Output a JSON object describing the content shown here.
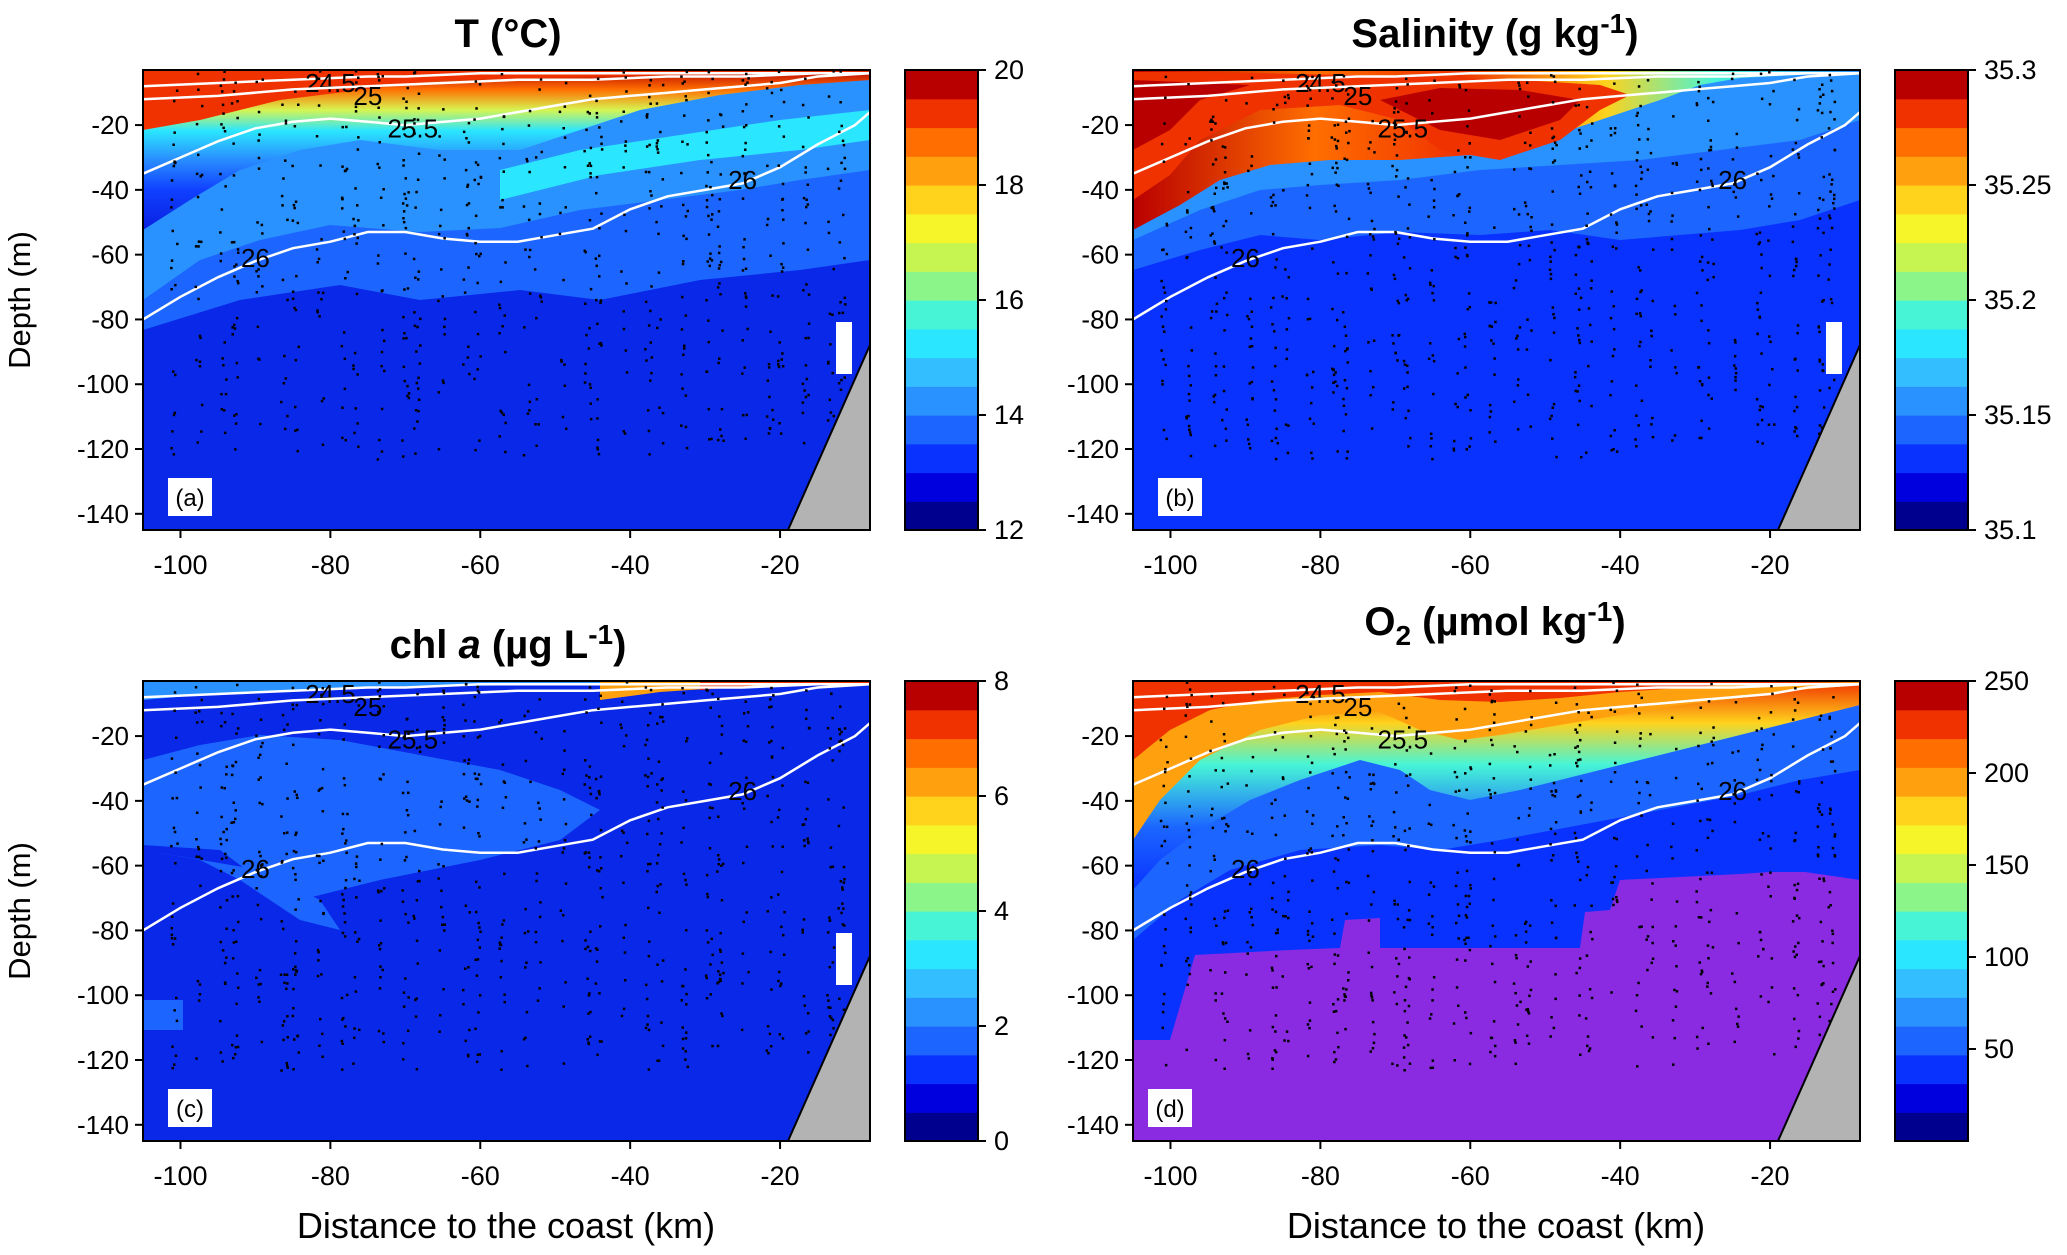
{
  "figure": {
    "ylabel": "Depth (m)",
    "xlabel": "Distance to the coast (km)"
  },
  "chart_data": [
    {
      "type": "heatmap",
      "panel": "(a)",
      "title": "T (°C)",
      "ylabel": "Depth (m)",
      "xlabel": "",
      "xlim": [
        -105,
        -8
      ],
      "ylim": [
        -145,
        -3
      ],
      "xticks": [
        "-100",
        "-80",
        "-60",
        "-40",
        "-20"
      ],
      "yticks": [
        "-20",
        "-40",
        "-60",
        "-80",
        "-100",
        "-120",
        "-140"
      ],
      "colorbar": {
        "min": 12,
        "max": 20,
        "levels": 16,
        "ticks": [
          "20",
          "18",
          "16",
          "14",
          "12"
        ]
      },
      "isopycnals": [
        {
          "label": "24.5",
          "x": [
            -105,
            -95,
            -85,
            -75,
            -70,
            -60,
            -50,
            -40,
            -30,
            -20,
            -10,
            -8
          ],
          "y": [
            -8,
            -7,
            -6,
            -5,
            -5,
            -4,
            -4,
            -4,
            -4,
            -4,
            -4,
            -4
          ]
        },
        {
          "label": "25",
          "x": [
            -105,
            -95,
            -85,
            -75,
            -65,
            -55,
            -45,
            -35,
            -25,
            -15,
            -8
          ],
          "y": [
            -12,
            -11,
            -9,
            -8,
            -7,
            -6,
            -6,
            -5,
            -5,
            -4,
            -4
          ]
        },
        {
          "label": "25.5",
          "x": [
            -105,
            -100,
            -95,
            -90,
            -85,
            -80,
            -75,
            -70,
            -60,
            -55,
            -50,
            -45,
            -40,
            -35,
            -30,
            -25,
            -20,
            -15,
            -8
          ],
          "y": [
            -35,
            -30,
            -25,
            -21,
            -19,
            -18,
            -19,
            -20,
            -18,
            -16,
            -14,
            -12,
            -11,
            -10,
            -9,
            -8,
            -7,
            -5,
            -4
          ]
        },
        {
          "label": "26",
          "x": [
            -105,
            -100,
            -95,
            -90,
            -85,
            -80,
            -75,
            -70,
            -65,
            -60,
            -55,
            -50,
            -45,
            -40,
            -35,
            -30,
            -25,
            -20,
            -15,
            -10,
            -8
          ],
          "y": [
            -80,
            -73,
            -67,
            -62,
            -58,
            -56,
            -53,
            -53,
            -55,
            -56,
            -56,
            -54,
            -52,
            -46,
            -42,
            -40,
            -38,
            -33,
            -26,
            -20,
            -16
          ]
        }
      ]
    },
    {
      "type": "heatmap",
      "panel": "(b)",
      "title": "Salinity (g kg",
      "title_sup": "-1",
      "title_end": ")",
      "ylabel": "",
      "xlabel": "",
      "xlim": [
        -105,
        -8
      ],
      "ylim": [
        -145,
        -3
      ],
      "xticks": [
        "-100",
        "-80",
        "-60",
        "-40",
        "-20"
      ],
      "yticks": [
        "-20",
        "-40",
        "-60",
        "-80",
        "-100",
        "-120",
        "-140"
      ],
      "colorbar": {
        "min": 35.1,
        "max": 35.3,
        "levels": 16,
        "ticks": [
          "35.3",
          "35.25",
          "35.2",
          "35.15",
          "35.1"
        ]
      },
      "isopycnals": "same as (a)"
    },
    {
      "type": "heatmap",
      "panel": "(c)",
      "title": "chl ",
      "title_italic": "a",
      "title_rest": " (µg L",
      "title_sup": "-1",
      "title_end": ")",
      "ylabel": "Depth (m)",
      "xlabel": "Distance to the coast (km)",
      "xlim": [
        -105,
        -8
      ],
      "ylim": [
        -145,
        -3
      ],
      "xticks": [
        "-100",
        "-80",
        "-60",
        "-40",
        "-20"
      ],
      "yticks": [
        "-20",
        "-40",
        "-60",
        "-80",
        "-100",
        "-120",
        "-140"
      ],
      "colorbar": {
        "min": 0,
        "max": 8,
        "levels": 16,
        "ticks": [
          "8",
          "6",
          "4",
          "2",
          "0"
        ]
      },
      "isopycnals": "same as (a)"
    },
    {
      "type": "heatmap",
      "panel": "(d)",
      "title": "O",
      "title_sub": "2",
      "title_rest": " (µmol kg",
      "title_sup": "-1",
      "title_end": ")",
      "ylabel": "",
      "xlabel": "Distance to the coast (km)",
      "xlim": [
        -105,
        -8
      ],
      "ylim": [
        -145,
        -3
      ],
      "xticks": [
        "-100",
        "-80",
        "-60",
        "-40",
        "-20"
      ],
      "yticks": [
        "-20",
        "-40",
        "-60",
        "-80",
        "-100",
        "-120",
        "-140"
      ],
      "colorbar": {
        "min": 0,
        "max": 250,
        "levels": 16,
        "ticks": [
          "250",
          "200",
          "150",
          "100",
          "50"
        ]
      },
      "isopycnals": "same as (a)"
    }
  ],
  "colors": {
    "colormap": [
      "#00008f",
      "#0000df",
      "#0a32ff",
      "#1c66ff",
      "#2a92ff",
      "#33bfff",
      "#2ae6ff",
      "#47f5d6",
      "#8cf58a",
      "#c6f552",
      "#f5f52a",
      "#ffd21c",
      "#ffa00f",
      "#ff6e00",
      "#f03200",
      "#b90000"
    ],
    "anoxic": "#8a2be2",
    "land": "#b3b3b3",
    "isopycnal": "#ffffff",
    "station": "#000000"
  }
}
